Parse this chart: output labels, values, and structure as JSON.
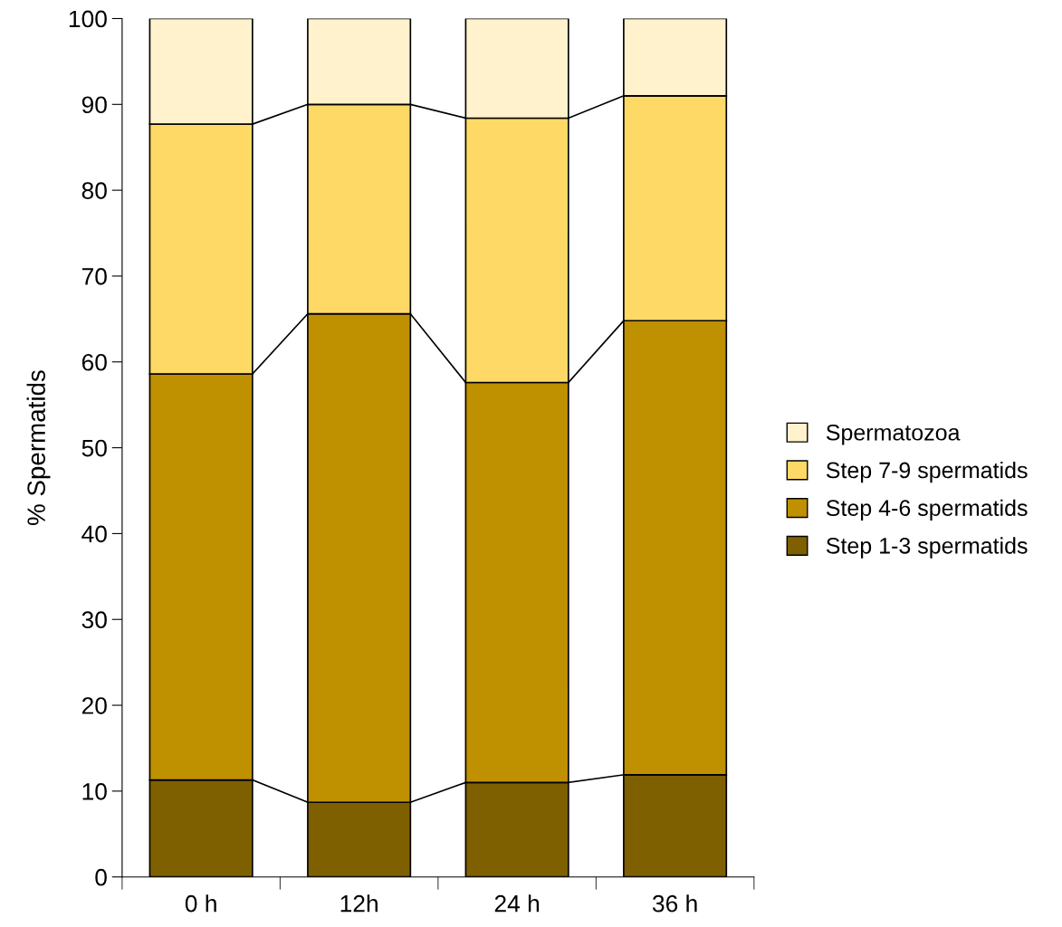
{
  "chart_data": {
    "type": "bar",
    "stacked": true,
    "ylabel": "% Spermatids",
    "categories": [
      "0 h",
      "12h",
      "24 h",
      "36 h"
    ],
    "series": [
      {
        "name": "Step 1-3 spermatids",
        "color": "#7f6000",
        "values": [
          11.3,
          8.7,
          11.0,
          11.9
        ]
      },
      {
        "name": "Step 4-6 spermatids",
        "color": "#bf9000",
        "values": [
          47.3,
          56.9,
          46.6,
          52.9
        ]
      },
      {
        "name": "Step 7-9 spermatids",
        "color": "#ffd966",
        "values": [
          29.1,
          24.4,
          30.8,
          26.2
        ]
      },
      {
        "name": "Spermatozoa",
        "color": "#fff2cc",
        "values": [
          12.3,
          10.0,
          11.6,
          9.0
        ]
      }
    ],
    "ylim": [
      0,
      100
    ],
    "yticks": [
      0,
      10,
      20,
      30,
      40,
      50,
      60,
      70,
      80,
      90,
      100
    ],
    "grid": false,
    "legend": "right"
  }
}
